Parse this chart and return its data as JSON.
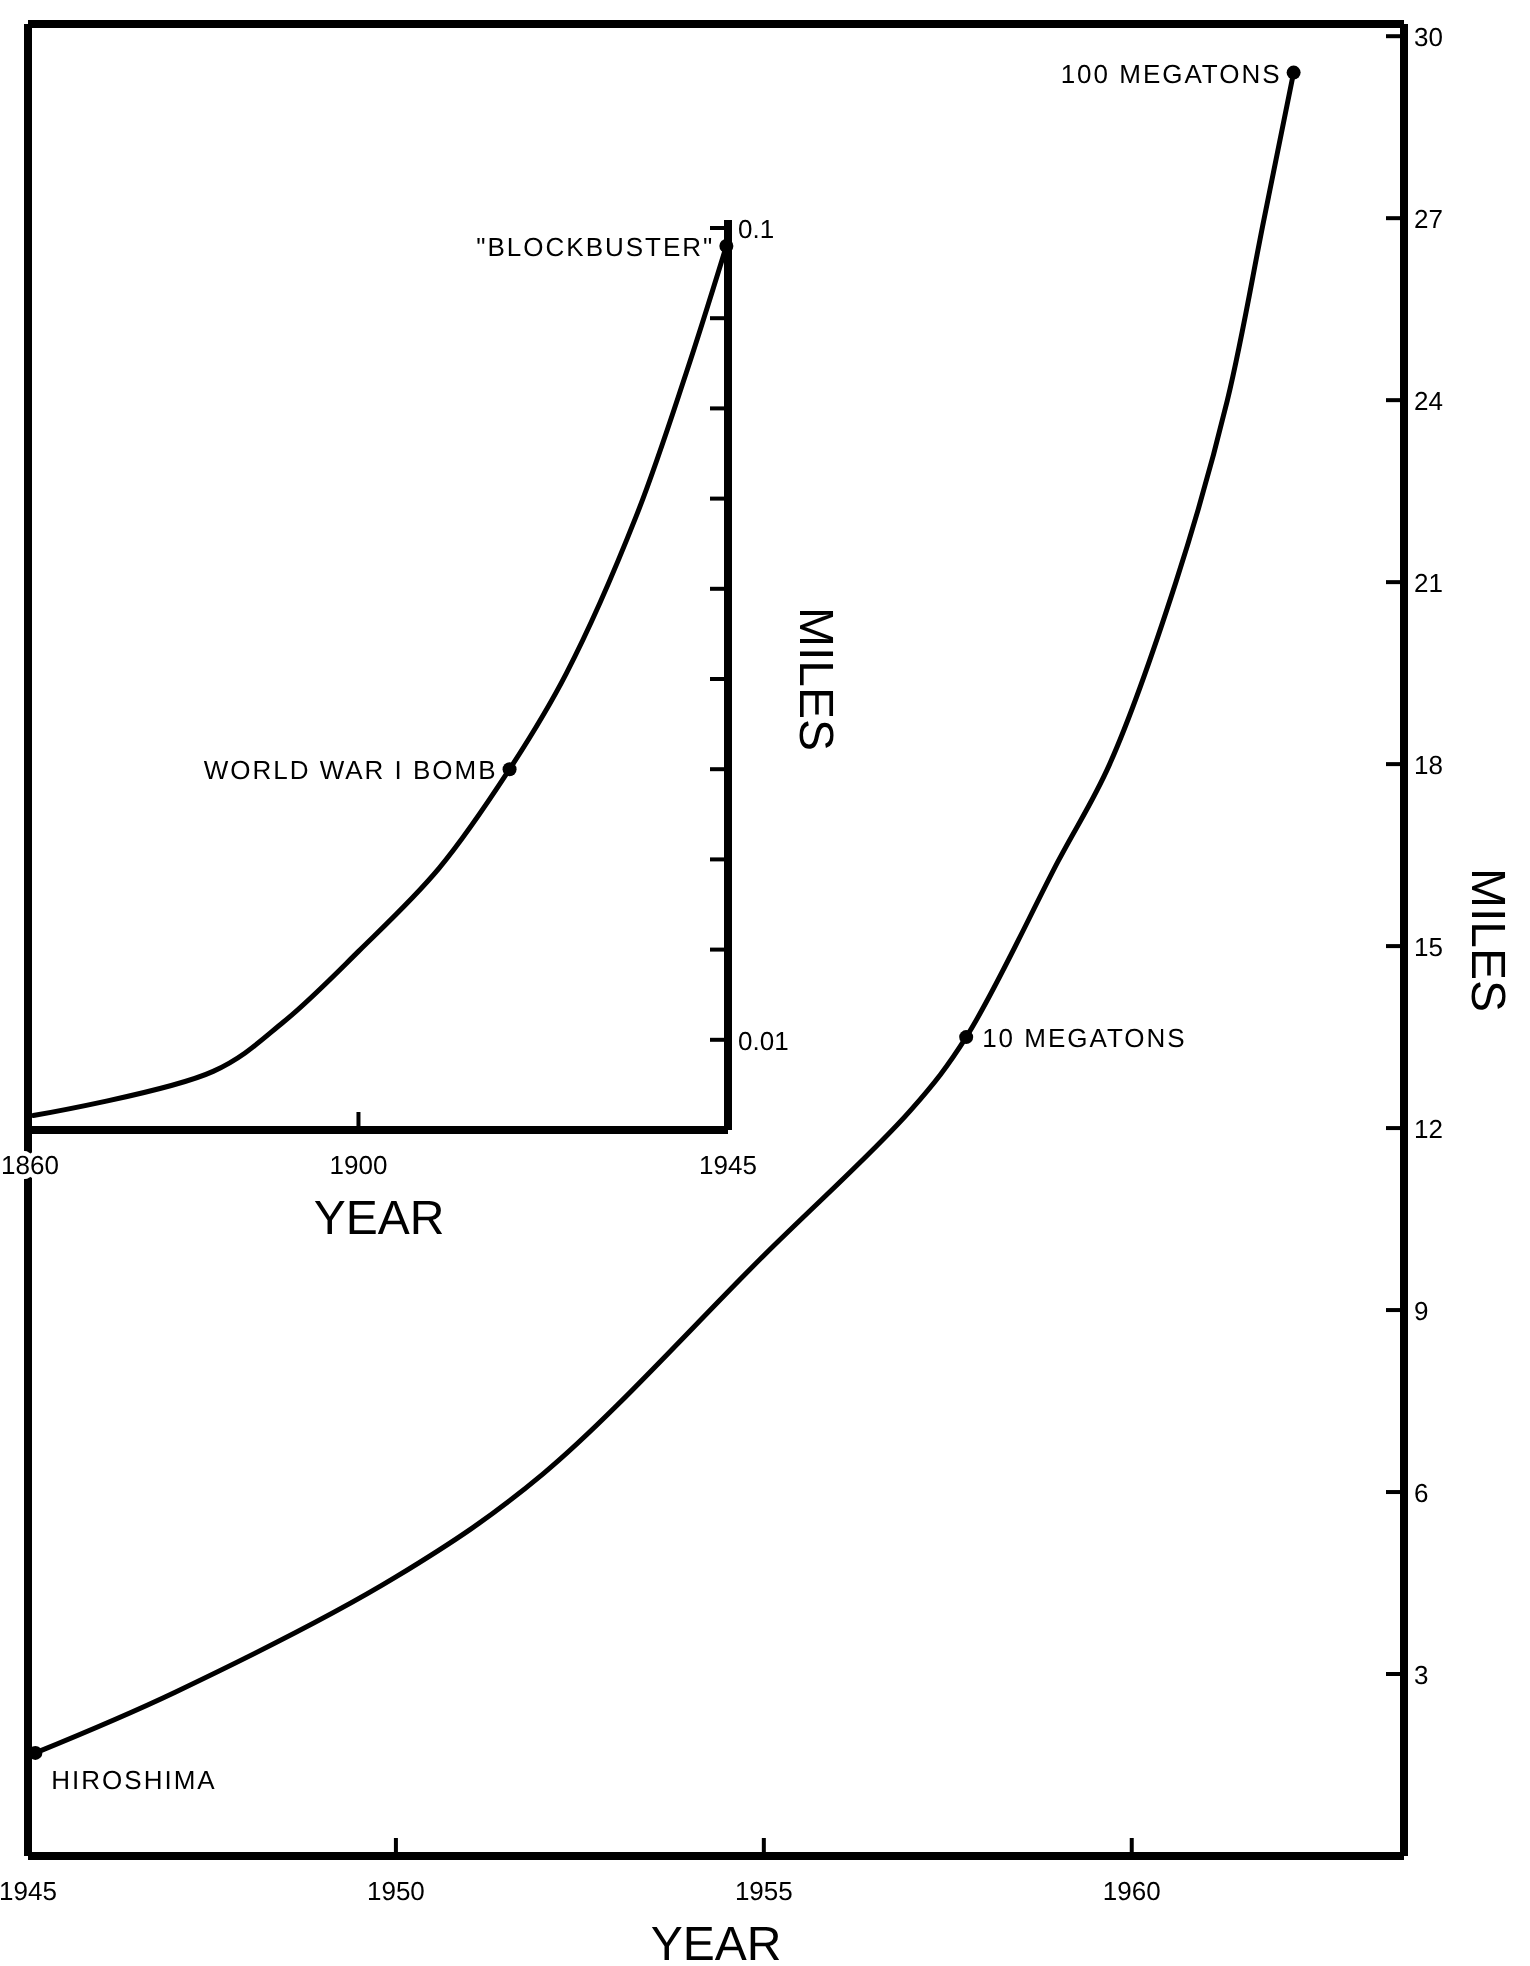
{
  "chart_data": [
    {
      "type": "line",
      "xlabel": "YEAR",
      "ylabel": "MILES",
      "x": [
        1945.1,
        1947,
        1950,
        1952,
        1955,
        1957,
        1957.75,
        1959,
        1959.7,
        1960.6,
        1961.3,
        1961.8,
        1962.2
      ],
      "values": [
        1.7,
        2.7,
        4.6,
        6.3,
        9.9,
        12.3,
        13.5,
        16.4,
        18,
        21,
        24,
        27,
        29.4
      ],
      "color": "#000000",
      "xlim": [
        1945,
        1963.7
      ],
      "xticks": [
        1945,
        1950,
        1955,
        1960
      ],
      "ylim": [
        0,
        30.2
      ],
      "yticks": [
        3,
        6,
        9,
        12,
        15,
        18,
        21,
        24,
        27,
        30
      ],
      "marker": "none",
      "grid": false,
      "annotations": [
        {
          "text": "HIROSHIMA",
          "x": 1945.1,
          "y": 1.7
        },
        {
          "text": "10 MEGATONS",
          "x": 1957.75,
          "y": 13.5
        },
        {
          "text": "100 MEGATONS",
          "x": 1962.2,
          "y": 29.4
        }
      ]
    },
    {
      "type": "line",
      "xlabel": "YEAR",
      "ylabel": "MILES",
      "x": [
        1860.4,
        1882.3,
        1890.9,
        1900,
        1909.8,
        1918.4,
        1925.3,
        1933.8,
        1939.9,
        1944.8
      ],
      "values": [
        0.0016,
        0.0065,
        0.012,
        0.0198,
        0.029,
        0.04,
        0.0506,
        0.068,
        0.0839,
        0.098
      ],
      "color": "#000000",
      "xlim": [
        1860,
        1945
      ],
      "xticks": [
        1860,
        1900,
        1945
      ],
      "ylim": [
        0,
        0.1
      ],
      "yticks": [
        0.01,
        {
          "value": 0.02,
          "label": null
        },
        {
          "value": 0.03,
          "label": null
        },
        {
          "value": 0.04,
          "label": null
        },
        {
          "value": 0.05,
          "label": null
        },
        {
          "value": 0.06,
          "label": null
        },
        {
          "value": 0.07,
          "label": null
        },
        {
          "value": 0.08,
          "label": null
        },
        {
          "value": 0.09,
          "label": null
        },
        0.1
      ],
      "marker": "none",
      "grid": false,
      "annotations": [
        {
          "text": "WORLD WAR I BOMB",
          "x": 1918.4,
          "y": 0.04
        },
        {
          "text": "\"BLOCKBUSTER\"",
          "x": 1944.8,
          "y": 0.098
        }
      ]
    }
  ]
}
